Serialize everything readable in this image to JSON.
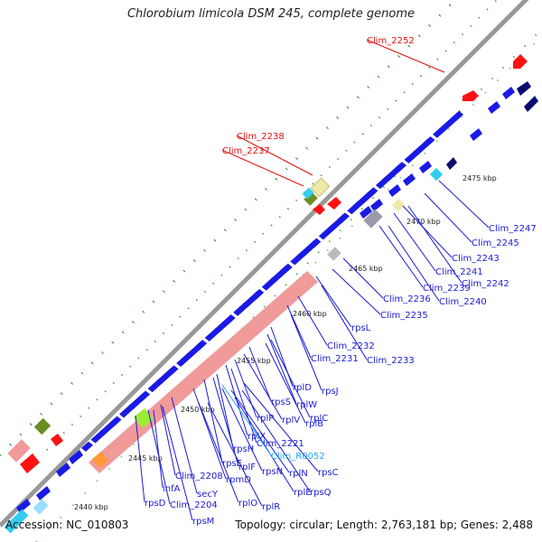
{
  "title": "Chlorobium limicola DSM 245, complete genome",
  "footer": {
    "accession": "Accession: NC_010803",
    "summary": "Topology: circular; Length: 2,763,181 bp; Genes: 2,488"
  },
  "colors": {
    "backbone": "#999999",
    "dots": "#228822",
    "blue_gene": "#1a1ae6",
    "navy_gene": "#0a0a6e",
    "red_gene": "#ff1111",
    "pink_rrna": "#f09a9a",
    "olive": "#6b8e23",
    "khaki": "#eee8aa",
    "gray": "#bbbbbb",
    "cyan": "#33ccee",
    "label_blue": "#1a1ad6",
    "label_red": "#e01010",
    "label_cyan": "#22aaee"
  },
  "ticks": [
    "2440 kbp",
    "2445 kbp",
    "2450 kbp",
    "2455 kbp",
    "2460 kbp",
    "2465 kbp",
    "2470 kbp",
    "2475 kbp"
  ],
  "labels_red": [
    "Clim_2252",
    "Clim_2238",
    "Clim_2237"
  ],
  "labels_blue": [
    "Clim_2247",
    "Clim_2245",
    "Clim_2243",
    "Clim_2241",
    "Clim_2242",
    "Clim_2239",
    "Clim_2240",
    "Clim_2236",
    "Clim_2235",
    "rpsL",
    "Clim_2232",
    "Clim_2231",
    "Clim_2233",
    "rplD",
    "rpsJ",
    "rplW",
    "rplC",
    "rpsS",
    "rplB",
    "rplV",
    "rplP",
    "rplX",
    "Clim_2221",
    "rpsH",
    "rplF",
    "rpsE",
    "rpsN",
    "rplN",
    "rpsC",
    "Clim_2208",
    "rpmD",
    "rplE",
    "rpsQ",
    "infA",
    "secY",
    "rplO",
    "rplR",
    "rpsD",
    "Clim_2204",
    "rpsM"
  ],
  "labels_cyan": [
    "Clim_R0052"
  ]
}
